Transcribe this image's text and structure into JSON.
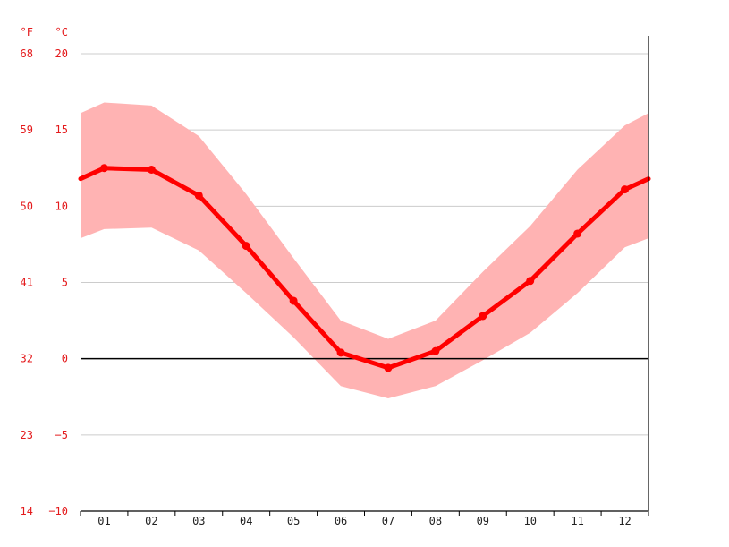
{
  "chart_data": {
    "type": "line",
    "title": "",
    "xlabel": "",
    "categories": [
      "01",
      "02",
      "03",
      "04",
      "05",
      "06",
      "07",
      "08",
      "09",
      "10",
      "11",
      "12"
    ],
    "y_unit_primary": "°C",
    "y_unit_secondary": "°F",
    "ylim": [
      -10,
      20
    ],
    "yticks_c": [
      20,
      15,
      10,
      5,
      0,
      -5,
      -10
    ],
    "yticks_c_labels": [
      "20",
      "15",
      "10",
      "5",
      "0",
      "−5",
      "−10"
    ],
    "yticks_f": [
      "68",
      "59",
      "50",
      "41",
      "32",
      "23",
      "14"
    ],
    "grid": true,
    "series": [
      {
        "values": [
          12.5,
          12.4,
          10.7,
          7.4,
          3.8,
          0.4,
          -0.6,
          0.5,
          2.8,
          5.1,
          8.2,
          11.1
        ]
      }
    ],
    "band_min": [
      8.5,
      8.6,
      7.1,
      4.3,
      1.4,
      -1.8,
      -2.6,
      -1.8,
      -0.1,
      1.7,
      4.3,
      7.3
    ],
    "band_max": [
      16.8,
      16.6,
      14.6,
      10.8,
      6.6,
      2.5,
      1.3,
      2.5,
      5.7,
      8.7,
      12.4,
      15.3
    ],
    "edge_left": {
      "mean": 11.8,
      "min": 7.9,
      "max": 16.1
    },
    "edge_right": {
      "mean": 11.8,
      "min": 7.9,
      "max": 16.1
    },
    "colors": {
      "line": "#ff0000",
      "band": "#ffb3b3",
      "grid": "#cccccc",
      "zero": "#000000",
      "label": "#e41a1c"
    }
  }
}
